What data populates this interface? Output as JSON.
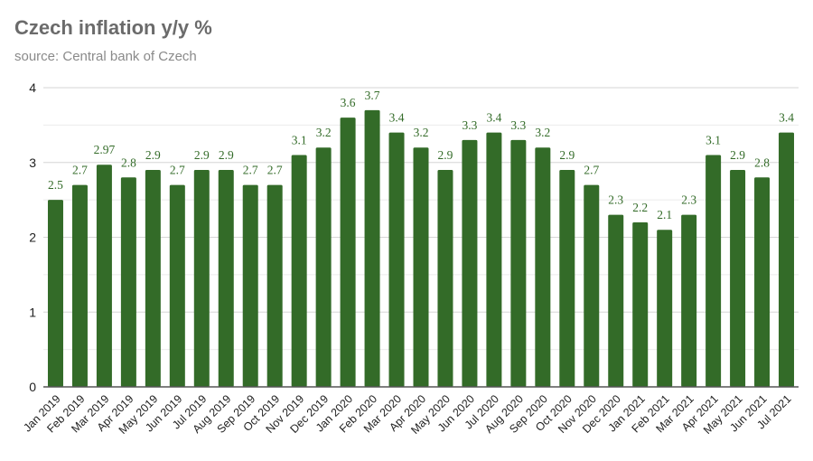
{
  "chart_data": {
    "type": "bar",
    "title": "Czech inflation y/y %",
    "subtitle": "source: Central bank of Czech",
    "xlabel": "",
    "ylabel": "",
    "ylim": [
      0,
      4
    ],
    "yticks": [
      0,
      1,
      2,
      3,
      4
    ],
    "grid": true,
    "minor_grid_step": 0.5,
    "legend": "none",
    "bar_color": "#336b28",
    "label_color": "#336b28",
    "categories": [
      "Jan 2019",
      "Feb 2019",
      "Mar 2019",
      "Apr 2019",
      "May 2019",
      "Jun 2019",
      "Jul 2019",
      "Aug 2019",
      "Sep 2019",
      "Oct 2019",
      "Nov 2019",
      "Dec 2019",
      "Jan 2020",
      "Feb 2020",
      "Mar 2020",
      "Apr 2020",
      "May 2020",
      "Jun 2020",
      "Jul 2020",
      "Aug 2020",
      "Sep 2020",
      "Oct 2020",
      "Nov 2020",
      "Dec 2020",
      "Jan 2021",
      "Feb 2021",
      "Mar 2021",
      "Apr 2021",
      "May 2021",
      "Jun 2021",
      "Jul 2021"
    ],
    "values": [
      2.5,
      2.7,
      2.97,
      2.8,
      2.9,
      2.7,
      2.9,
      2.9,
      2.7,
      2.7,
      3.1,
      3.2,
      3.6,
      3.7,
      3.4,
      3.2,
      2.9,
      3.3,
      3.4,
      3.3,
      3.2,
      2.9,
      2.7,
      2.3,
      2.2,
      2.1,
      2.3,
      3.1,
      2.9,
      2.8,
      3.4
    ],
    "data_labels": [
      "2.5",
      "2.7",
      "2.97",
      "2.8",
      "2.9",
      "2.7",
      "2.9",
      "2.9",
      "2.7",
      "2.7",
      "3.1",
      "3.2",
      "3.6",
      "3.7",
      "3.4",
      "3.2",
      "2.9",
      "3.3",
      "3.4",
      "3.3",
      "3.2",
      "2.9",
      "2.7",
      "2.3",
      "2.2",
      "2.1",
      "2.3",
      "3.1",
      "2.9",
      "2.8",
      "3.4"
    ]
  }
}
